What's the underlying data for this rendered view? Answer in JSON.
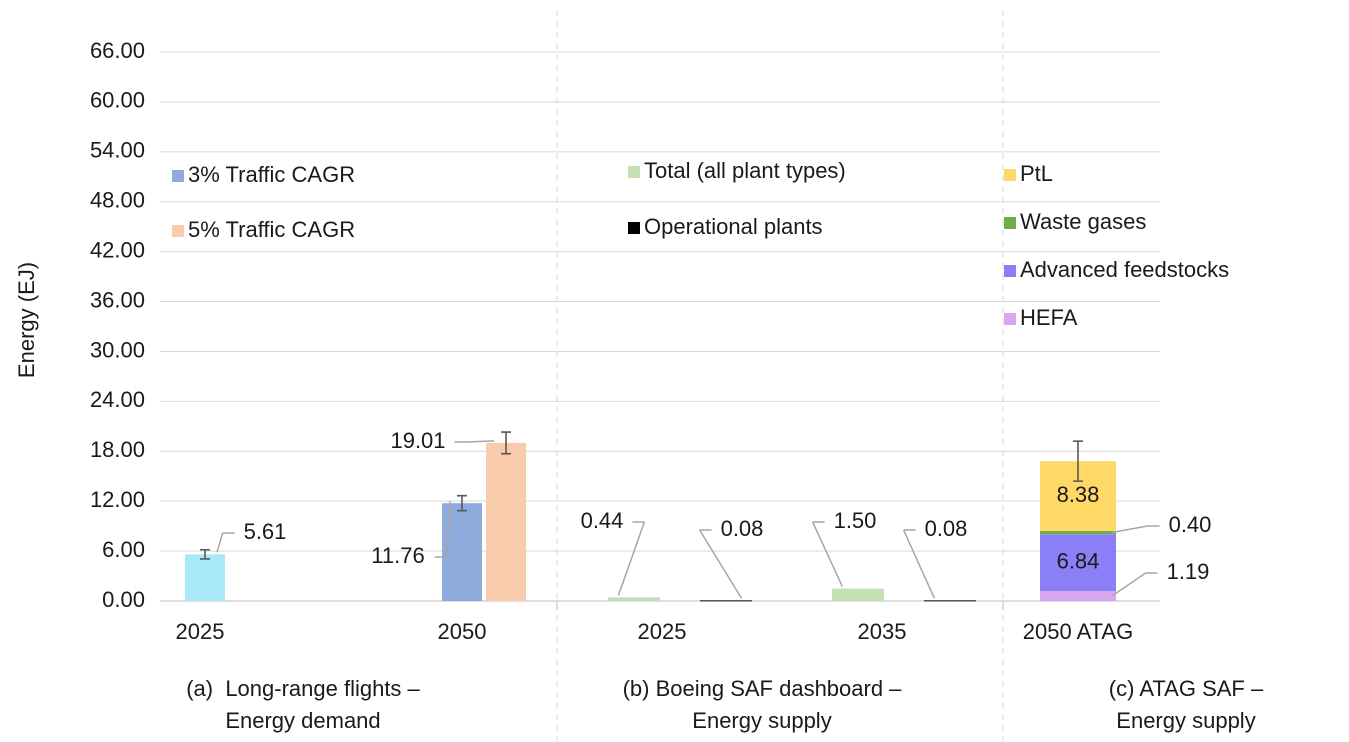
{
  "chart_data": {
    "type": "bar",
    "ylabel": "Energy (EJ)",
    "ylim": [
      0,
      66
    ],
    "yticks": [
      {
        "value": 0,
        "label": "0.00"
      },
      {
        "value": 6,
        "label": "6.00"
      },
      {
        "value": 12,
        "label": "12.00"
      },
      {
        "value": 18,
        "label": "18.00"
      },
      {
        "value": 24,
        "label": "24.00"
      },
      {
        "value": 30,
        "label": "30.00"
      },
      {
        "value": 36,
        "label": "36.00"
      },
      {
        "value": 42,
        "label": "42.00"
      },
      {
        "value": 48,
        "label": "48.00"
      },
      {
        "value": 54,
        "label": "54.00"
      },
      {
        "value": 60,
        "label": "60.00"
      },
      {
        "value": 66,
        "label": "66.00"
      }
    ],
    "grid": true,
    "panels": [
      {
        "type": "bar",
        "label": [
          "(a)  Long-range flights –",
          "Energy demand"
        ],
        "categories": [
          "2025",
          "2050"
        ],
        "series": [
          {
            "color": "#a9e8f6",
            "values": [
              5.61,
              null
            ],
            "errors": [
              0.55,
              null
            ],
            "value_labels": [
              "5.61",
              null
            ]
          },
          {
            "name": "3% Traffic CAGR",
            "color": "#8faadc",
            "values": [
              null,
              11.76
            ],
            "errors": [
              null,
              0.9
            ],
            "value_labels": [
              null,
              "11.76"
            ]
          },
          {
            "name": "5% Traffic CAGR",
            "color": "#f8cbad",
            "values": [
              null,
              19.01
            ],
            "errors": [
              null,
              1.3
            ],
            "value_labels": [
              null,
              "19.01"
            ]
          }
        ]
      },
      {
        "type": "bar",
        "label": [
          "(b) Boeing SAF dashboard –",
          "Energy supply"
        ],
        "categories": [
          "2025",
          "2035"
        ],
        "series": [
          {
            "name": "Total (all plant types)",
            "color": "#c5e0b4",
            "values": [
              0.44,
              1.5
            ],
            "value_labels": [
              "0.44",
              "1.50"
            ]
          },
          {
            "name": "Operational plants",
            "color": "#000000",
            "values": [
              0.08,
              0.08
            ],
            "value_labels": [
              "0.08",
              "0.08"
            ]
          }
        ]
      },
      {
        "type": "stacked_bar",
        "label": [
          "(c) ATAG SAF –",
          "Energy supply"
        ],
        "categories": [
          "2050 ATAG"
        ],
        "series": [
          {
            "name": "HEFA",
            "color": "#d9a6f2",
            "values": [
              1.19
            ],
            "value_labels": [
              "1.19"
            ]
          },
          {
            "name": "Advanced feedstocks",
            "color": "#8b7ff7",
            "values": [
              6.84
            ],
            "value_labels": [
              "6.84"
            ]
          },
          {
            "name": "Waste gases",
            "color": "#70ad47",
            "values": [
              0.4
            ],
            "value_labels": [
              "0.40"
            ]
          },
          {
            "name": "PtL",
            "color": "#ffd966",
            "values": [
              8.38
            ],
            "errors": [
              2.4
            ],
            "value_labels": [
              "8.38"
            ]
          }
        ]
      }
    ]
  }
}
